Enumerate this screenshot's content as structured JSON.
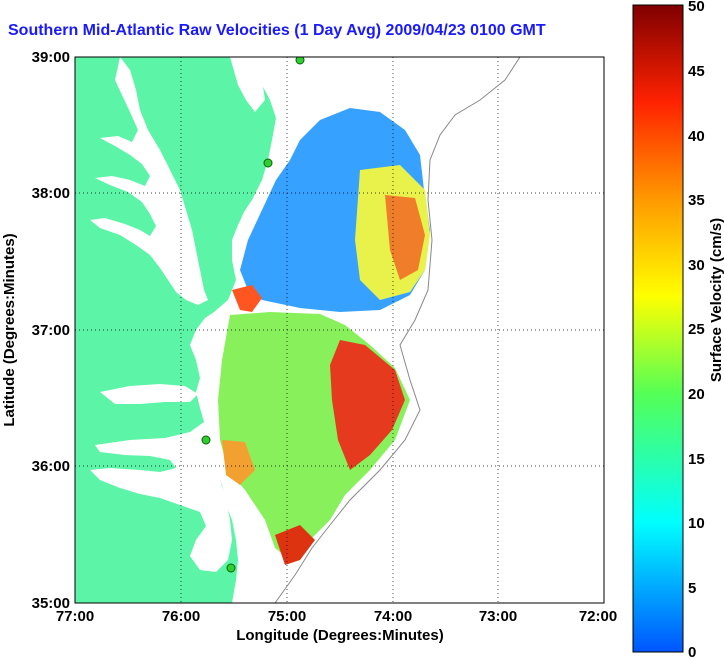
{
  "title": "Southern Mid-Atlantic Raw Velocities (1 Day Avg) 2009/04/23 0100 GMT",
  "map": {
    "xlabel": "Longitude (Degrees:Minutes)",
    "ylabel": "Latitude (Degrees:Minutes)",
    "x_ticks": [
      "77:00",
      "76:00",
      "75:00",
      "74:00",
      "73:00",
      "72:00"
    ],
    "y_ticks": [
      "39:00",
      "38:00",
      "37:00",
      "36:00",
      "35:00"
    ],
    "lon_range": [
      -77,
      -72
    ],
    "lat_range": [
      35,
      39
    ],
    "colors": {
      "land": "#5cf5a8",
      "water": "#ffffff",
      "grid": "#000000",
      "contour": "#888888",
      "sites": "#33cc33"
    }
  },
  "colorbar": {
    "label": "Surface Velocity (cm/s)",
    "ticks": [
      "0",
      "5",
      "10",
      "15",
      "20",
      "25",
      "30",
      "35",
      "40",
      "45",
      "50"
    ],
    "range": [
      0,
      50
    ]
  }
}
